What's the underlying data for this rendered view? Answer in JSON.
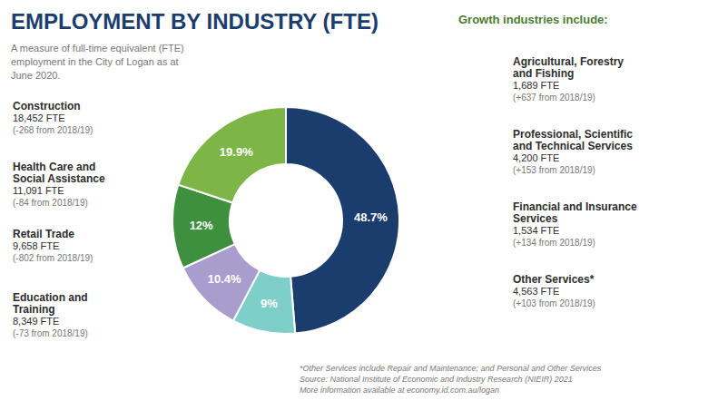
{
  "chart_data": {
    "type": "pie",
    "title": "EMPLOYMENT BY INDUSTRY (FTE)",
    "subtitle": "A measure of full-time equivalent (FTE)\nemployment in the City of Logan as at\nJune 2020.",
    "values": [
      48.7,
      9.0,
      10.4,
      12.0,
      19.9
    ],
    "value_labels": [
      "48.7%",
      "9%",
      "10.4%",
      "12%",
      "19.9%"
    ],
    "colors": [
      "#1b3d6e",
      "#7ececa",
      "#a89dcc",
      "#3e8f3e",
      "#7db646"
    ],
    "data_labels": true,
    "annotations": [
      [
        "Construction",
        "18,452 FTE",
        "(-268 from 2018/19)"
      ],
      [
        "Health Care and",
        "Social Assistance",
        "11,091 FTE",
        "(-84 from 2018/19)"
      ],
      [
        "Retail Trade",
        "9,658 FTE",
        "(-802 from 2018/19)"
      ],
      [
        "Education and",
        "Training",
        "8,349 FTE",
        "(-73 from 2018/19)"
      ],
      [
        "Growth industries include:"
      ],
      [
        "Agricultural, Forestry",
        "and Fishing",
        "1,689 FTE",
        "(+637 from 2018/19)"
      ],
      [
        "Professional, Scientific",
        "and Technical Services",
        "4,200 FTE",
        "(+153 from 2018/19)"
      ],
      [
        "Financial and Insurance",
        "Services",
        "1,534 FTE",
        "(+134 from 2018/19)"
      ],
      [
        "Other Services*",
        "4,563 FTE",
        "(+103 from 2018/19)"
      ],
      [
        "*Other Services include Repair and Maintenance; and Personal and Other Services",
        "Source: National Institute of Economic and Industry Research (NIEIR) 2021",
        "More information available at economy.id.com.au/logan"
      ]
    ]
  }
}
